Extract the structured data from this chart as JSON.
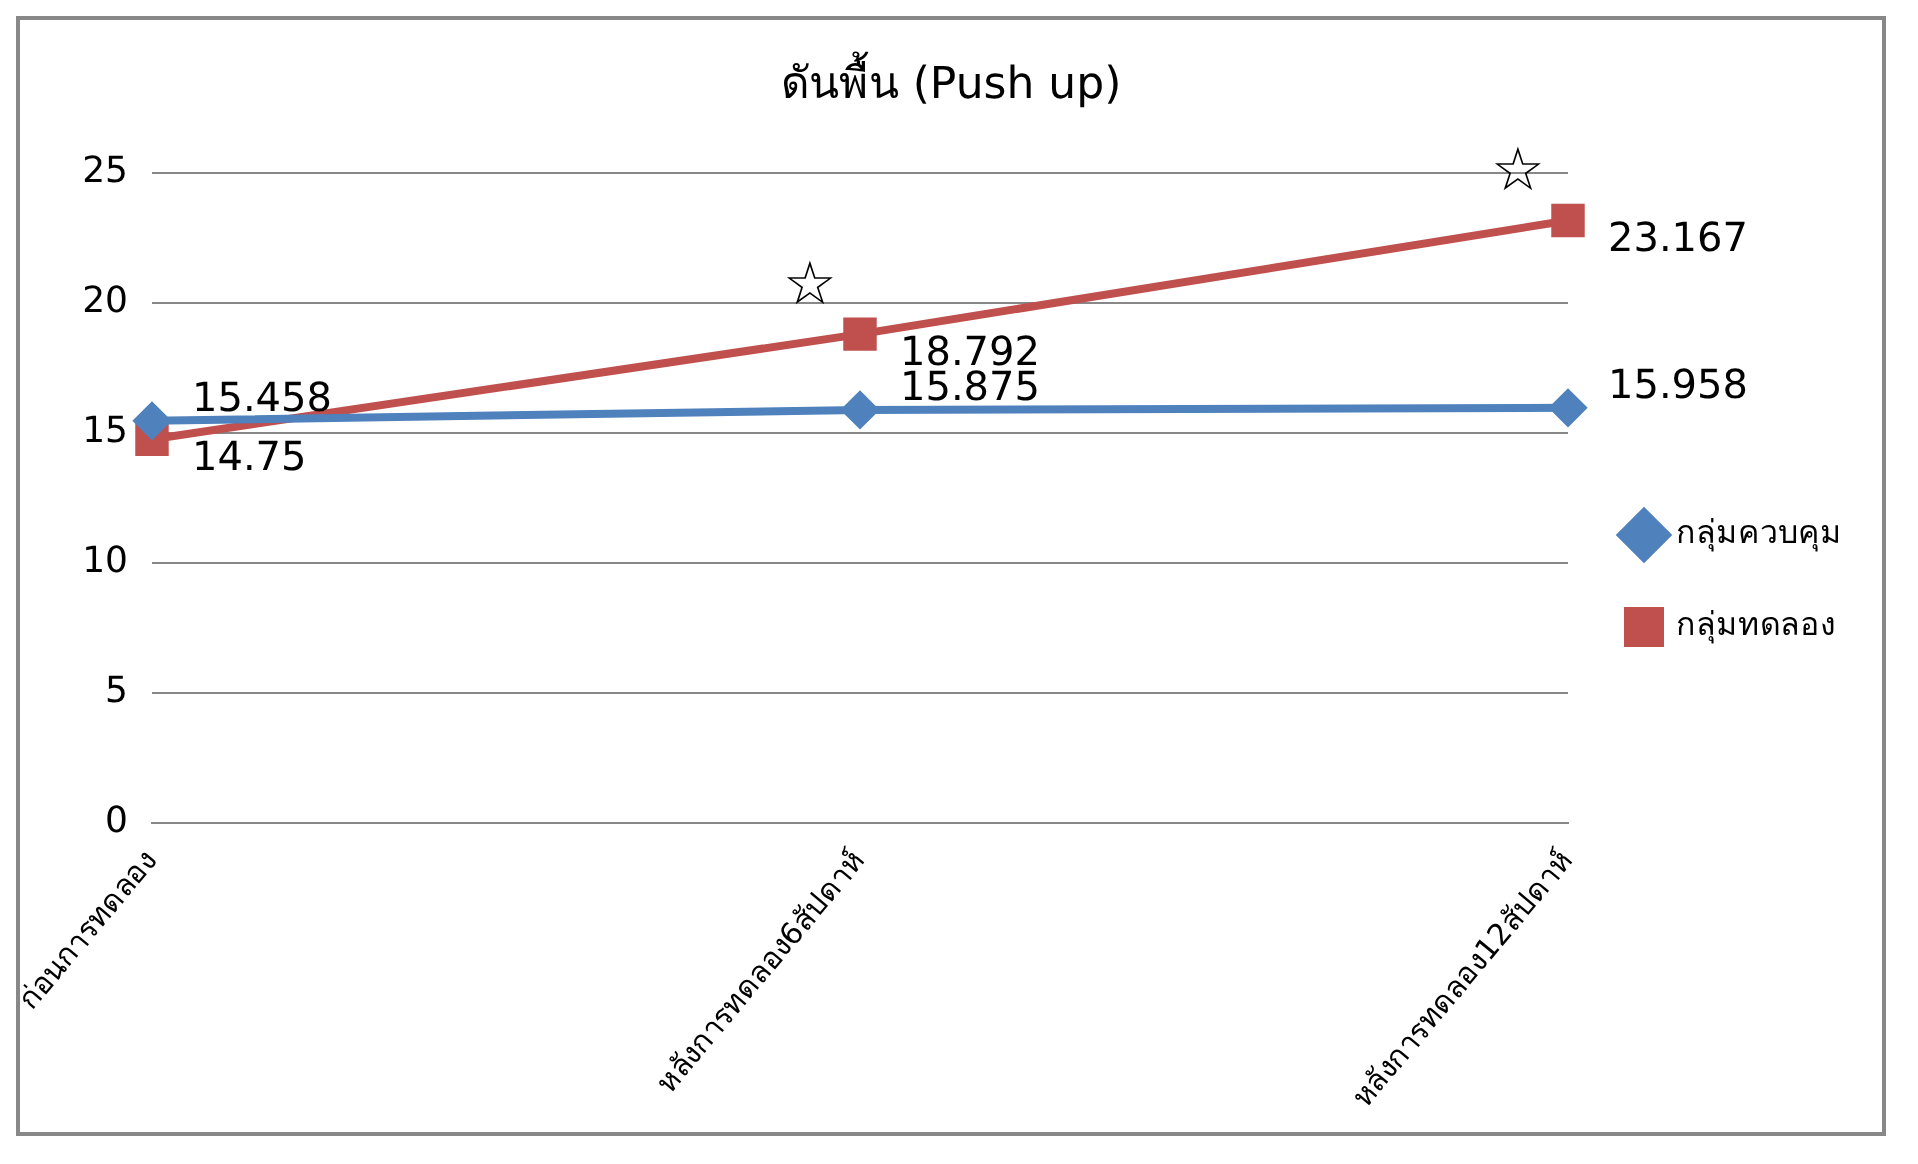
{
  "chart_data": {
    "type": "line",
    "title": "ดันพื้น (Push up)",
    "categories": [
      "ก่อนการทดลอง",
      "หลังการทดลอง6สัปดาห์",
      "หลังการทดลอง12สัปดาห์"
    ],
    "series": [
      {
        "name": "กลุ่มควบคุม",
        "color": "#4f81bd",
        "marker": "diamond",
        "values": [
          15.458,
          15.875,
          15.958
        ]
      },
      {
        "name": "กลุ่มทดลอง",
        "color": "#c0504d",
        "marker": "square",
        "values": [
          14.75,
          18.792,
          23.167
        ]
      }
    ],
    "ylim": [
      0,
      25
    ],
    "yticks": [
      0,
      5,
      10,
      15,
      20,
      25
    ],
    "grid": "y",
    "legend": "right",
    "data_labels": true,
    "annotations": [
      {
        "text": "☆",
        "x": "หลังการทดลอง6สัปดาห์",
        "y": 18.792
      },
      {
        "text": "☆",
        "x": "หลังการทดลอง12สัปดาห์",
        "y": 23.167
      }
    ]
  }
}
